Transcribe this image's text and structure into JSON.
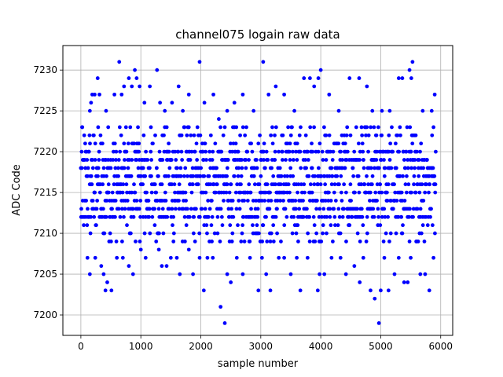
{
  "chart_data": {
    "type": "scatter",
    "title": "channel075 logain raw data",
    "xlabel": "sample number",
    "ylabel": "ADC Code",
    "xlim": [
      -300,
      6200
    ],
    "ylim": [
      7197.5,
      7233
    ],
    "xticks": [
      0,
      1000,
      2000,
      3000,
      4000,
      5000,
      6000
    ],
    "yticks": [
      7200,
      7205,
      7210,
      7215,
      7220,
      7225,
      7230
    ],
    "grid": true,
    "marker_color": "#0000ff",
    "n_samples": 5920,
    "core_range": [
      7209,
      7223
    ],
    "outliers": [
      {
        "x": 20,
        "y": 7223
      },
      {
        "x": 150,
        "y": 7225
      },
      {
        "x": 170,
        "y": 7226
      },
      {
        "x": 190,
        "y": 7227
      },
      {
        "x": 230,
        "y": 7227
      },
      {
        "x": 280,
        "y": 7229
      },
      {
        "x": 310,
        "y": 7227
      },
      {
        "x": 420,
        "y": 7225
      },
      {
        "x": 560,
        "y": 7227
      },
      {
        "x": 640,
        "y": 7231
      },
      {
        "x": 680,
        "y": 7227
      },
      {
        "x": 720,
        "y": 7228
      },
      {
        "x": 800,
        "y": 7229
      },
      {
        "x": 850,
        "y": 7228
      },
      {
        "x": 900,
        "y": 7230
      },
      {
        "x": 930,
        "y": 7229
      },
      {
        "x": 980,
        "y": 7228
      },
      {
        "x": 1060,
        "y": 7226
      },
      {
        "x": 1150,
        "y": 7228
      },
      {
        "x": 1270,
        "y": 7230
      },
      {
        "x": 1320,
        "y": 7226
      },
      {
        "x": 1400,
        "y": 7225
      },
      {
        "x": 1520,
        "y": 7226
      },
      {
        "x": 1630,
        "y": 7228
      },
      {
        "x": 1700,
        "y": 7225
      },
      {
        "x": 1800,
        "y": 7227
      },
      {
        "x": 1980,
        "y": 7231
      },
      {
        "x": 2060,
        "y": 7226
      },
      {
        "x": 2210,
        "y": 7227
      },
      {
        "x": 2300,
        "y": 7224
      },
      {
        "x": 2440,
        "y": 7225
      },
      {
        "x": 2560,
        "y": 7226
      },
      {
        "x": 2700,
        "y": 7227
      },
      {
        "x": 2880,
        "y": 7225
      },
      {
        "x": 3040,
        "y": 7231
      },
      {
        "x": 3130,
        "y": 7227
      },
      {
        "x": 3250,
        "y": 7228
      },
      {
        "x": 3390,
        "y": 7227
      },
      {
        "x": 3560,
        "y": 7225
      },
      {
        "x": 3720,
        "y": 7229
      },
      {
        "x": 3820,
        "y": 7229
      },
      {
        "x": 3890,
        "y": 7228
      },
      {
        "x": 3960,
        "y": 7229
      },
      {
        "x": 4000,
        "y": 7230
      },
      {
        "x": 4140,
        "y": 7227
      },
      {
        "x": 4300,
        "y": 7225
      },
      {
        "x": 4480,
        "y": 7229
      },
      {
        "x": 4640,
        "y": 7229
      },
      {
        "x": 4770,
        "y": 7228
      },
      {
        "x": 4860,
        "y": 7225
      },
      {
        "x": 5020,
        "y": 7225
      },
      {
        "x": 5150,
        "y": 7225
      },
      {
        "x": 5300,
        "y": 7229
      },
      {
        "x": 5360,
        "y": 7229
      },
      {
        "x": 5480,
        "y": 7230
      },
      {
        "x": 5510,
        "y": 7229
      },
      {
        "x": 5530,
        "y": 7231
      },
      {
        "x": 5700,
        "y": 7225
      },
      {
        "x": 5850,
        "y": 7225
      },
      {
        "x": 5900,
        "y": 7227
      },
      {
        "x": 110,
        "y": 7207
      },
      {
        "x": 150,
        "y": 7205
      },
      {
        "x": 240,
        "y": 7207
      },
      {
        "x": 340,
        "y": 7206
      },
      {
        "x": 380,
        "y": 7205
      },
      {
        "x": 410,
        "y": 7203
      },
      {
        "x": 440,
        "y": 7204
      },
      {
        "x": 510,
        "y": 7203
      },
      {
        "x": 600,
        "y": 7207
      },
      {
        "x": 700,
        "y": 7207
      },
      {
        "x": 800,
        "y": 7206
      },
      {
        "x": 870,
        "y": 7205
      },
      {
        "x": 1000,
        "y": 7208
      },
      {
        "x": 1080,
        "y": 7207
      },
      {
        "x": 1300,
        "y": 7208
      },
      {
        "x": 1350,
        "y": 7206
      },
      {
        "x": 1430,
        "y": 7206
      },
      {
        "x": 1500,
        "y": 7207
      },
      {
        "x": 1600,
        "y": 7207
      },
      {
        "x": 1650,
        "y": 7205
      },
      {
        "x": 1800,
        "y": 7208
      },
      {
        "x": 1870,
        "y": 7205
      },
      {
        "x": 1980,
        "y": 7207
      },
      {
        "x": 2050,
        "y": 7203
      },
      {
        "x": 2110,
        "y": 7207
      },
      {
        "x": 2200,
        "y": 7207
      },
      {
        "x": 2330,
        "y": 7201
      },
      {
        "x": 2400,
        "y": 7199
      },
      {
        "x": 2440,
        "y": 7205
      },
      {
        "x": 2500,
        "y": 7204
      },
      {
        "x": 2600,
        "y": 7207
      },
      {
        "x": 2700,
        "y": 7205
      },
      {
        "x": 2820,
        "y": 7207
      },
      {
        "x": 2960,
        "y": 7203
      },
      {
        "x": 3020,
        "y": 7207
      },
      {
        "x": 3090,
        "y": 7205
      },
      {
        "x": 3160,
        "y": 7203
      },
      {
        "x": 3300,
        "y": 7207
      },
      {
        "x": 3390,
        "y": 7207
      },
      {
        "x": 3500,
        "y": 7205
      },
      {
        "x": 3600,
        "y": 7207
      },
      {
        "x": 3660,
        "y": 7203
      },
      {
        "x": 3780,
        "y": 7207
      },
      {
        "x": 3950,
        "y": 7203
      },
      {
        "x": 3980,
        "y": 7205
      },
      {
        "x": 4060,
        "y": 7205
      },
      {
        "x": 4180,
        "y": 7207
      },
      {
        "x": 4330,
        "y": 7207
      },
      {
        "x": 4420,
        "y": 7205
      },
      {
        "x": 4560,
        "y": 7206
      },
      {
        "x": 4650,
        "y": 7204
      },
      {
        "x": 4710,
        "y": 7207
      },
      {
        "x": 4830,
        "y": 7203
      },
      {
        "x": 4900,
        "y": 7202
      },
      {
        "x": 4970,
        "y": 7199
      },
      {
        "x": 5000,
        "y": 7203
      },
      {
        "x": 5060,
        "y": 7207
      },
      {
        "x": 5130,
        "y": 7203
      },
      {
        "x": 5230,
        "y": 7205
      },
      {
        "x": 5300,
        "y": 7207
      },
      {
        "x": 5390,
        "y": 7204
      },
      {
        "x": 5450,
        "y": 7204
      },
      {
        "x": 5500,
        "y": 7207
      },
      {
        "x": 5660,
        "y": 7205
      },
      {
        "x": 5740,
        "y": 7205
      },
      {
        "x": 5810,
        "y": 7203
      },
      {
        "x": 5880,
        "y": 7207
      }
    ]
  }
}
